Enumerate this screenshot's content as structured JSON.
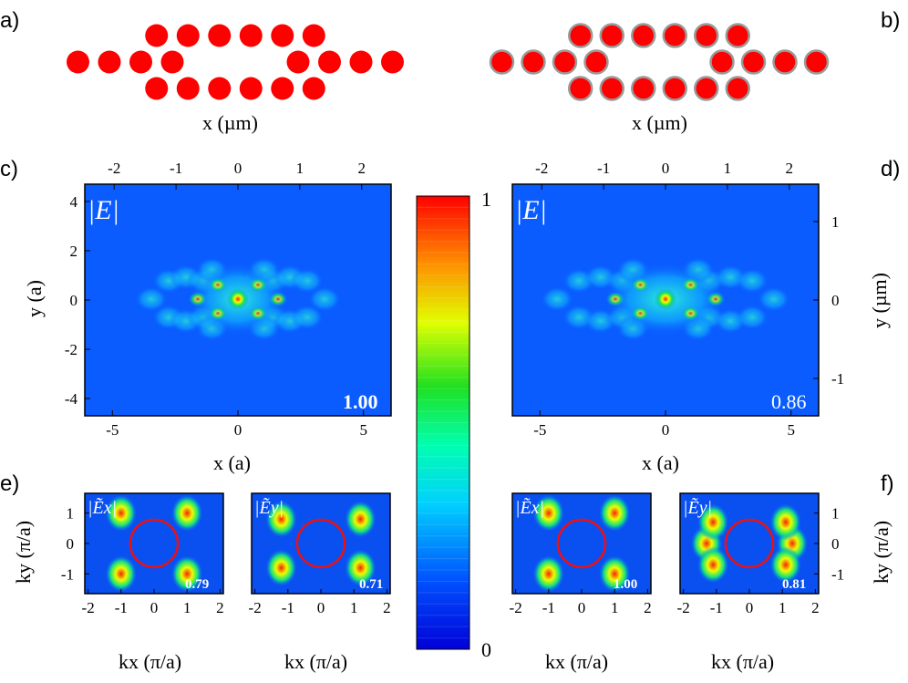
{
  "panel_labels": {
    "a": "a)",
    "b": "b)",
    "c": "c)",
    "d": "d)",
    "e": "e)",
    "f": "f)"
  },
  "lattice_xlabel": "x (µm)",
  "colorbar": {
    "max_label": "1",
    "min_label": "0"
  },
  "map_panels": {
    "title": "|E|",
    "x_label": "x (a)",
    "y_label_left": "y (a)",
    "y_label_right": "y (µm)",
    "x_ticks": [
      "-5",
      "0",
      "5"
    ],
    "top_ticks": [
      "-2",
      "-1",
      "0",
      "1",
      "2"
    ],
    "y_ticks_a": [
      "4",
      "2",
      "0",
      "-2",
      "-4"
    ],
    "y_ticks_um": [
      "1",
      "0",
      "-1"
    ],
    "c_value": "1.00",
    "d_value": "0.86"
  },
  "k_panels": {
    "x_label": "kx (π/a)",
    "y_label": "ky (π/a)",
    "x_ticks": [
      "-2",
      "-1",
      "0",
      "1",
      "2"
    ],
    "y_ticks": [
      "1",
      "0",
      "-1"
    ],
    "ex_title": "|Ẽx|",
    "ey_title": "|Ẽy|",
    "e_x_value": "0.79",
    "e_y_value": "0.71",
    "f_x_value": "1.00",
    "f_y_value": "0.81"
  }
}
